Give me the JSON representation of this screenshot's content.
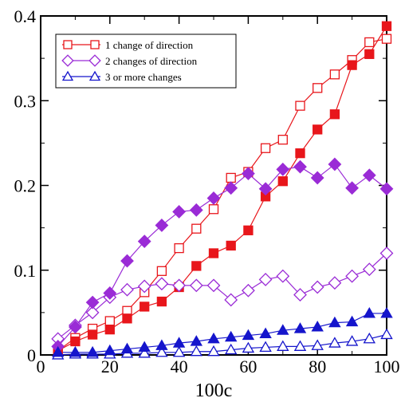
{
  "chart_data": {
    "type": "line",
    "xlabel": "100c",
    "ylabel": "",
    "xlim": [
      0,
      100
    ],
    "ylim": [
      0,
      0.4
    ],
    "xticks": [
      0,
      20,
      40,
      60,
      80,
      100
    ],
    "yticks": [
      0,
      0.1,
      0.2,
      0.3,
      0.4
    ],
    "ytick_labels": [
      "0",
      "0.1",
      "0.2",
      "0.3",
      "0.4"
    ],
    "grid": false,
    "legend_position": "top-left",
    "legend": [
      {
        "label": "1 change of direction",
        "marker": "square",
        "color": "#e8161b"
      },
      {
        "label": "2 changes of direction",
        "marker": "diamond",
        "color": "#9a2bd6"
      },
      {
        "label": "3 or more changes",
        "marker": "triangle",
        "color": "#1515cc"
      }
    ],
    "x": [
      5,
      10,
      15,
      20,
      25,
      30,
      35,
      40,
      45,
      50,
      55,
      60,
      65,
      70,
      75,
      80,
      85,
      90,
      95,
      100
    ],
    "series": [
      {
        "color": "#e8161b",
        "marker": "square",
        "filled": false,
        "values": [
          0.005,
          0.02,
          0.031,
          0.04,
          0.052,
          0.074,
          0.099,
          0.126,
          0.149,
          0.172,
          0.209,
          0.216,
          0.244,
          0.254,
          0.294,
          0.315,
          0.331,
          0.348,
          0.369,
          0.373
        ]
      },
      {
        "color": "#e8161b",
        "marker": "square",
        "filled": true,
        "values": [
          0.005,
          0.016,
          0.024,
          0.03,
          0.043,
          0.057,
          0.063,
          0.08,
          0.105,
          0.12,
          0.129,
          0.147,
          0.187,
          0.205,
          0.238,
          0.266,
          0.284,
          0.342,
          0.355,
          0.388
        ]
      },
      {
        "color": "#9a2bd6",
        "marker": "diamond",
        "filled": false,
        "values": [
          0.019,
          0.035,
          0.05,
          0.068,
          0.077,
          0.081,
          0.084,
          0.082,
          0.082,
          0.082,
          0.065,
          0.076,
          0.089,
          0.093,
          0.071,
          0.08,
          0.085,
          0.093,
          0.101,
          0.12
        ]
      },
      {
        "color": "#9a2bd6",
        "marker": "diamond",
        "filled": true,
        "values": [
          0.01,
          0.033,
          0.062,
          0.073,
          0.111,
          0.134,
          0.153,
          0.169,
          0.171,
          0.185,
          0.197,
          0.214,
          0.196,
          0.219,
          0.222,
          0.209,
          0.225,
          0.197,
          0.212,
          0.196
        ]
      },
      {
        "color": "#1515cc",
        "marker": "triangle",
        "filled": false,
        "values": [
          0.0,
          0.001,
          0.001,
          0.001,
          0.002,
          0.002,
          0.003,
          0.003,
          0.004,
          0.004,
          0.006,
          0.008,
          0.009,
          0.01,
          0.01,
          0.011,
          0.014,
          0.016,
          0.019,
          0.024
        ]
      },
      {
        "color": "#1515cc",
        "marker": "triangle",
        "filled": true,
        "values": [
          0.003,
          0.003,
          0.003,
          0.005,
          0.007,
          0.009,
          0.011,
          0.014,
          0.016,
          0.019,
          0.021,
          0.023,
          0.025,
          0.029,
          0.031,
          0.033,
          0.038,
          0.039,
          0.049,
          0.049
        ]
      }
    ]
  }
}
